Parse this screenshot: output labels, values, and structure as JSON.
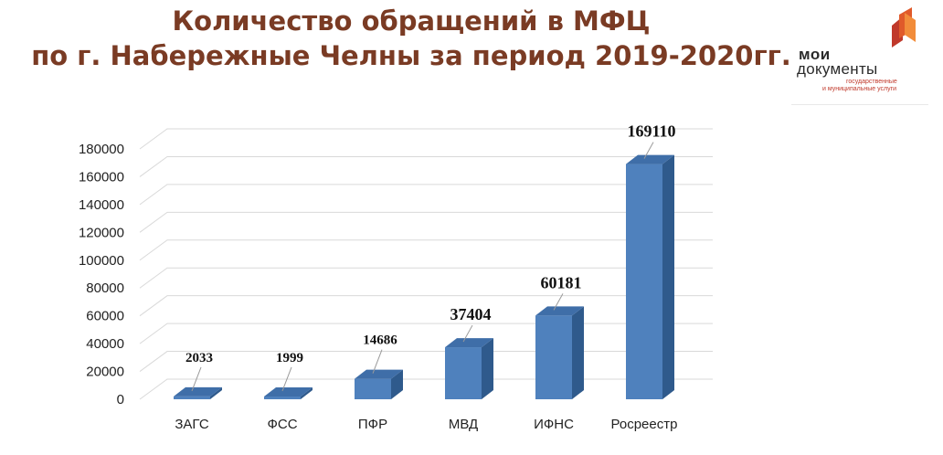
{
  "header": {
    "title_line1": "Количество обращений в МФЦ",
    "title_line2": "по г. Набережные Челны за период 2019-2020гг."
  },
  "logo": {
    "line1": "мои",
    "line2": "документы",
    "sub1": "государственные",
    "sub2": "и муниципальные услуги",
    "icon": "mfc-logo-icon",
    "colors": {
      "accent": "#c0392b",
      "text": "#2b2b2b"
    }
  },
  "chart_data": {
    "type": "bar",
    "title": "Количество обращений в МФЦ по г. Набережные Челны за период 2019-2020гг.",
    "categories": [
      "ЗАГС",
      "ФСС",
      "ПФР",
      "МВД",
      "ИФНС",
      "Росреестр"
    ],
    "values": [
      2033,
      1999,
      14686,
      37404,
      60181,
      169110
    ],
    "data_labels": [
      "2033",
      "1999",
      "14686",
      "37404",
      "60181",
      "169110"
    ],
    "yticks": [
      "0",
      "20000",
      "40000",
      "60000",
      "80000",
      "100000",
      "120000",
      "140000",
      "160000",
      "180000"
    ],
    "ylim": [
      0,
      180000
    ],
    "grid": true,
    "legend": "none",
    "bar_style": "3d",
    "colors": {
      "front": "#4f81bd",
      "top": "#3f6ea8",
      "side": "#2f5a8c",
      "grid": "#d9d9d9"
    }
  }
}
